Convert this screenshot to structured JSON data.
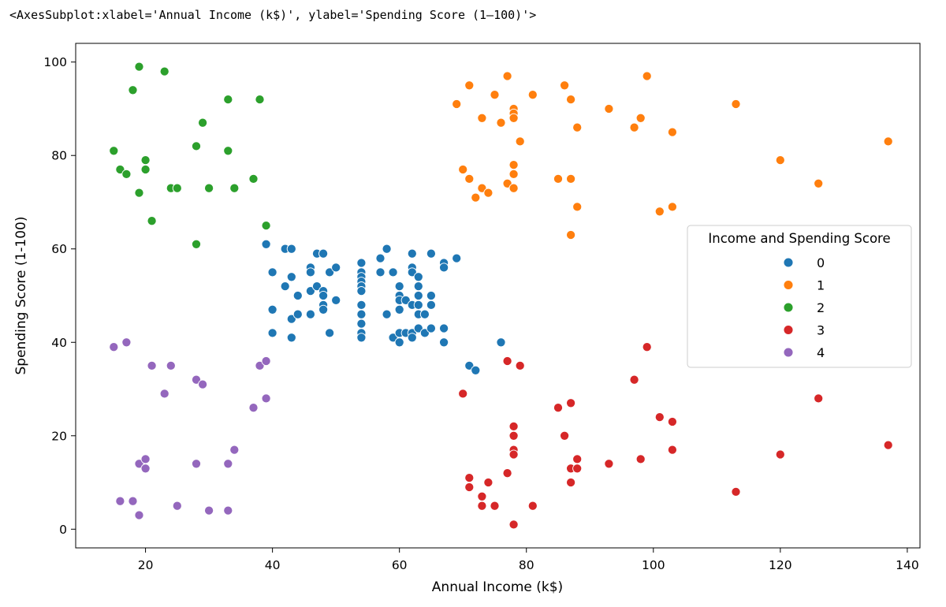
{
  "repr_text": "<AxesSubplot:xlabel='Annual Income (k$)', ylabel='Spending Score (1‒100)'>",
  "chart_data": {
    "type": "scatter",
    "xlabel": "Annual Income (k$)",
    "ylabel": "Spending Score (1-100)",
    "xlim": [
      9,
      142
    ],
    "ylim": [
      -4,
      104
    ],
    "xticks": [
      20,
      40,
      60,
      80,
      100,
      120,
      140
    ],
    "yticks": [
      0,
      20,
      40,
      60,
      80,
      100
    ],
    "grid": false,
    "legend": {
      "title": "Income and Spending Score",
      "placement": "center-right"
    },
    "series": [
      {
        "name": "0",
        "color": "#1f77b4",
        "points": [
          [
            39,
            61
          ],
          [
            40,
            55
          ],
          [
            40,
            47
          ],
          [
            40,
            42
          ],
          [
            42,
            60
          ],
          [
            42,
            52
          ],
          [
            43,
            60
          ],
          [
            43,
            54
          ],
          [
            43,
            45
          ],
          [
            43,
            41
          ],
          [
            44,
            50
          ],
          [
            44,
            46
          ],
          [
            46,
            56
          ],
          [
            46,
            55
          ],
          [
            46,
            51
          ],
          [
            46,
            46
          ],
          [
            47,
            59
          ],
          [
            47,
            52
          ],
          [
            48,
            59
          ],
          [
            48,
            51
          ],
          [
            48,
            50
          ],
          [
            48,
            48
          ],
          [
            48,
            47
          ],
          [
            49,
            55
          ],
          [
            49,
            42
          ],
          [
            50,
            56
          ],
          [
            50,
            49
          ],
          [
            54,
            57
          ],
          [
            54,
            55
          ],
          [
            54,
            54
          ],
          [
            54,
            53
          ],
          [
            54,
            52
          ],
          [
            54,
            51
          ],
          [
            54,
            48
          ],
          [
            54,
            46
          ],
          [
            54,
            44
          ],
          [
            54,
            42
          ],
          [
            54,
            41
          ],
          [
            57,
            58
          ],
          [
            57,
            55
          ],
          [
            58,
            60
          ],
          [
            58,
            46
          ],
          [
            59,
            55
          ],
          [
            59,
            41
          ],
          [
            60,
            52
          ],
          [
            60,
            50
          ],
          [
            60,
            49
          ],
          [
            60,
            47
          ],
          [
            60,
            42
          ],
          [
            60,
            40
          ],
          [
            61,
            49
          ],
          [
            61,
            42
          ],
          [
            62,
            59
          ],
          [
            62,
            56
          ],
          [
            62,
            55
          ],
          [
            62,
            48
          ],
          [
            62,
            42
          ],
          [
            62,
            41
          ],
          [
            63,
            54
          ],
          [
            63,
            52
          ],
          [
            63,
            50
          ],
          [
            63,
            48
          ],
          [
            63,
            46
          ],
          [
            63,
            43
          ],
          [
            64,
            46
          ],
          [
            64,
            42
          ],
          [
            65,
            59
          ],
          [
            65,
            50
          ],
          [
            65,
            48
          ],
          [
            65,
            43
          ],
          [
            67,
            57
          ],
          [
            67,
            56
          ],
          [
            67,
            43
          ],
          [
            67,
            40
          ],
          [
            69,
            58
          ],
          [
            71,
            35
          ],
          [
            72,
            34
          ],
          [
            76,
            40
          ]
        ]
      },
      {
        "name": "1",
        "color": "#ff7f0e",
        "points": [
          [
            69,
            91
          ],
          [
            70,
            77
          ],
          [
            71,
            95
          ],
          [
            71,
            75
          ],
          [
            72,
            71
          ],
          [
            73,
            88
          ],
          [
            73,
            73
          ],
          [
            74,
            72
          ],
          [
            75,
            93
          ],
          [
            76,
            87
          ],
          [
            77,
            97
          ],
          [
            77,
            74
          ],
          [
            78,
            90
          ],
          [
            78,
            89
          ],
          [
            78,
            88
          ],
          [
            78,
            78
          ],
          [
            78,
            76
          ],
          [
            78,
            73
          ],
          [
            79,
            83
          ],
          [
            81,
            93
          ],
          [
            85,
            75
          ],
          [
            86,
            95
          ],
          [
            87,
            92
          ],
          [
            87,
            75
          ],
          [
            87,
            63
          ],
          [
            88,
            86
          ],
          [
            88,
            69
          ],
          [
            93,
            90
          ],
          [
            97,
            86
          ],
          [
            98,
            88
          ],
          [
            99,
            97
          ],
          [
            101,
            68
          ],
          [
            103,
            85
          ],
          [
            103,
            69
          ],
          [
            113,
            91
          ],
          [
            120,
            79
          ],
          [
            126,
            74
          ],
          [
            137,
            83
          ]
        ]
      },
      {
        "name": "2",
        "color": "#2ca02c",
        "points": [
          [
            15,
            81
          ],
          [
            16,
            77
          ],
          [
            17,
            76
          ],
          [
            18,
            94
          ],
          [
            19,
            99
          ],
          [
            19,
            72
          ],
          [
            20,
            79
          ],
          [
            20,
            77
          ],
          [
            21,
            66
          ],
          [
            23,
            98
          ],
          [
            24,
            73
          ],
          [
            25,
            73
          ],
          [
            28,
            82
          ],
          [
            28,
            61
          ],
          [
            29,
            87
          ],
          [
            30,
            73
          ],
          [
            33,
            92
          ],
          [
            33,
            81
          ],
          [
            34,
            73
          ],
          [
            37,
            75
          ],
          [
            38,
            92
          ],
          [
            39,
            65
          ]
        ]
      },
      {
        "name": "3",
        "color": "#d62728",
        "points": [
          [
            70,
            29
          ],
          [
            71,
            11
          ],
          [
            71,
            9
          ],
          [
            73,
            7
          ],
          [
            73,
            5
          ],
          [
            74,
            10
          ],
          [
            75,
            5
          ],
          [
            77,
            36
          ],
          [
            77,
            12
          ],
          [
            78,
            22
          ],
          [
            78,
            20
          ],
          [
            78,
            17
          ],
          [
            78,
            16
          ],
          [
            78,
            1
          ],
          [
            79,
            35
          ],
          [
            81,
            5
          ],
          [
            85,
            26
          ],
          [
            86,
            20
          ],
          [
            87,
            27
          ],
          [
            87,
            13
          ],
          [
            87,
            10
          ],
          [
            88,
            15
          ],
          [
            88,
            13
          ],
          [
            93,
            14
          ],
          [
            97,
            32
          ],
          [
            98,
            15
          ],
          [
            99,
            39
          ],
          [
            101,
            24
          ],
          [
            103,
            23
          ],
          [
            103,
            17
          ],
          [
            113,
            8
          ],
          [
            120,
            16
          ],
          [
            126,
            28
          ],
          [
            137,
            18
          ]
        ]
      },
      {
        "name": "4",
        "color": "#9467bd",
        "points": [
          [
            15,
            39
          ],
          [
            16,
            6
          ],
          [
            17,
            40
          ],
          [
            18,
            6
          ],
          [
            19,
            14
          ],
          [
            19,
            3
          ],
          [
            20,
            15
          ],
          [
            20,
            13
          ],
          [
            21,
            35
          ],
          [
            23,
            29
          ],
          [
            24,
            35
          ],
          [
            25,
            5
          ],
          [
            28,
            32
          ],
          [
            28,
            14
          ],
          [
            29,
            31
          ],
          [
            30,
            4
          ],
          [
            33,
            14
          ],
          [
            33,
            4
          ],
          [
            34,
            17
          ],
          [
            37,
            26
          ],
          [
            38,
            35
          ],
          [
            39,
            36
          ],
          [
            39,
            28
          ]
        ]
      }
    ]
  }
}
